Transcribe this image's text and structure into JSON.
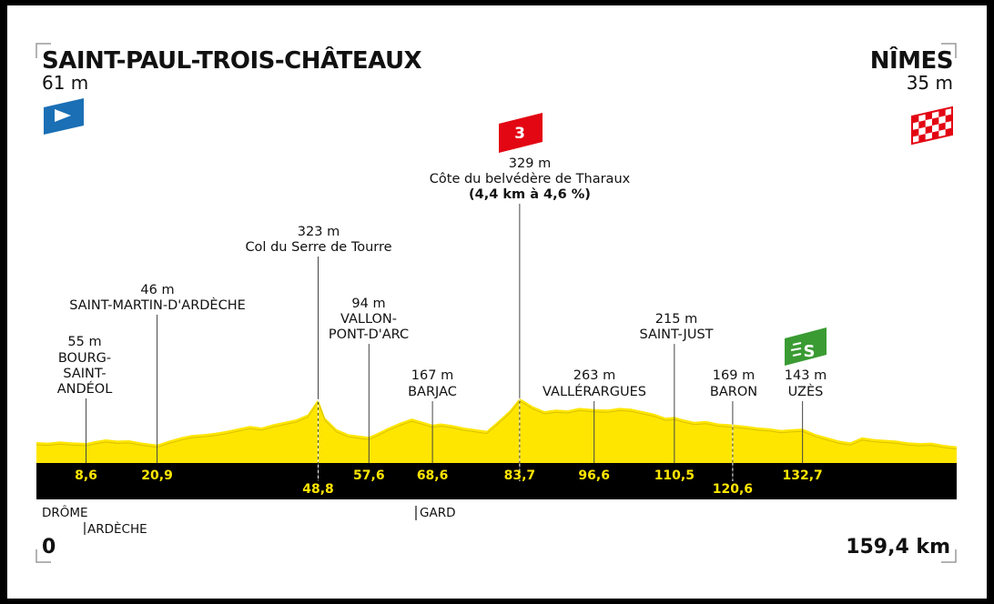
{
  "start": {
    "name": "SAINT-PAUL-TROIS-CHÂTEAUX",
    "altitude": "61 m"
  },
  "finish": {
    "name": "NÎMES",
    "altitude": "35 m"
  },
  "climb_badge": "3",
  "sprint_badge": "S",
  "colors": {
    "profile": "#ffe600",
    "band": "#000000",
    "climb": "#e30613",
    "sprint": "#3a9b33",
    "start_flag": "#1a6fb5"
  },
  "total_km_label": "159,4 km",
  "zero_km_label": "0",
  "departments": [
    {
      "name": "DRÔME",
      "marker": false
    },
    {
      "name": "ARDÈCHE",
      "marker": true
    },
    {
      "name": "GARD",
      "marker": true
    }
  ],
  "chart_data": {
    "type": "area",
    "xlim": [
      0,
      159.4
    ],
    "x": [
      0,
      2,
      4,
      6,
      8,
      8.6,
      10,
      12,
      14,
      16,
      18,
      20.9,
      23,
      25,
      27,
      29,
      31,
      33,
      35,
      37,
      39,
      41,
      43,
      45,
      47,
      48.8,
      50,
      52,
      54,
      56,
      57.6,
      59,
      61,
      63,
      65,
      67,
      68.6,
      70,
      72,
      74,
      76,
      78,
      80,
      82,
      83.7,
      86,
      88,
      90,
      92,
      94,
      96.6,
      99,
      101,
      103,
      105,
      107,
      109,
      110.5,
      112,
      114,
      116,
      118,
      120.6,
      123,
      125,
      127,
      129,
      131,
      132.7,
      135,
      137,
      139,
      141,
      143,
      145,
      147,
      149,
      151,
      153,
      155,
      157,
      159.4
    ],
    "y": [
      61,
      58,
      65,
      60,
      57,
      55,
      66,
      78,
      70,
      72,
      60,
      46,
      70,
      90,
      105,
      110,
      118,
      130,
      145,
      160,
      150,
      170,
      185,
      200,
      230,
      323,
      210,
      140,
      110,
      100,
      94,
      115,
      150,
      180,
      205,
      185,
      167,
      175,
      165,
      150,
      140,
      130,
      190,
      255,
      329,
      280,
      250,
      260,
      255,
      270,
      263,
      260,
      270,
      265,
      250,
      235,
      210,
      215,
      200,
      185,
      190,
      175,
      169,
      160,
      150,
      145,
      135,
      140,
      143,
      110,
      90,
      70,
      60,
      90,
      80,
      75,
      70,
      60,
      55,
      58,
      45,
      35
    ],
    "ylim": [
      0,
      1000
    ],
    "points": [
      {
        "km": 8.6,
        "km_label": "8,6",
        "alt": "55 m",
        "name": "BOURG-\nSAINT-\nANDÉOL",
        "line": "solid",
        "label_pos": "top"
      },
      {
        "km": 20.9,
        "km_label": "20,9",
        "alt": "46 m",
        "name": "SAINT-MARTIN-D'ARDÈCHE",
        "line": "solid",
        "label_pos": "top"
      },
      {
        "km": 48.8,
        "km_label": "48,8",
        "alt": "323 m",
        "name": "Col du Serre de Tourre",
        "line": "dashed",
        "label_pos": "bottom"
      },
      {
        "km": 57.6,
        "km_label": "57,6",
        "alt": "94 m",
        "name": "VALLON-\nPONT-D'ARC",
        "line": "solid",
        "label_pos": "top"
      },
      {
        "km": 68.6,
        "km_label": "68,6",
        "alt": "167 m",
        "name": "BARJAC",
        "line": "solid",
        "label_pos": "top"
      },
      {
        "km": 83.7,
        "km_label": "83,7",
        "alt": "329 m",
        "name": "Côte du belvédère de Tharaux",
        "detail": "(4,4 km à 4,6 %)",
        "line": "dashed",
        "label_pos": "top"
      },
      {
        "km": 96.6,
        "km_label": "96,6",
        "alt": "263 m",
        "name": "VALLÉRARGUES",
        "line": "solid",
        "label_pos": "top"
      },
      {
        "km": 110.5,
        "km_label": "110,5",
        "alt": "215 m",
        "name": "SAINT-JUST",
        "line": "solid",
        "label_pos": "top"
      },
      {
        "km": 120.6,
        "km_label": "120,6",
        "alt": "169 m",
        "name": "BARON",
        "line": "dashed",
        "label_pos": "bottom"
      },
      {
        "km": 132.7,
        "km_label": "132,7",
        "alt": "143 m",
        "name": "UZÈS",
        "line": "solid",
        "label_pos": "top"
      }
    ]
  }
}
